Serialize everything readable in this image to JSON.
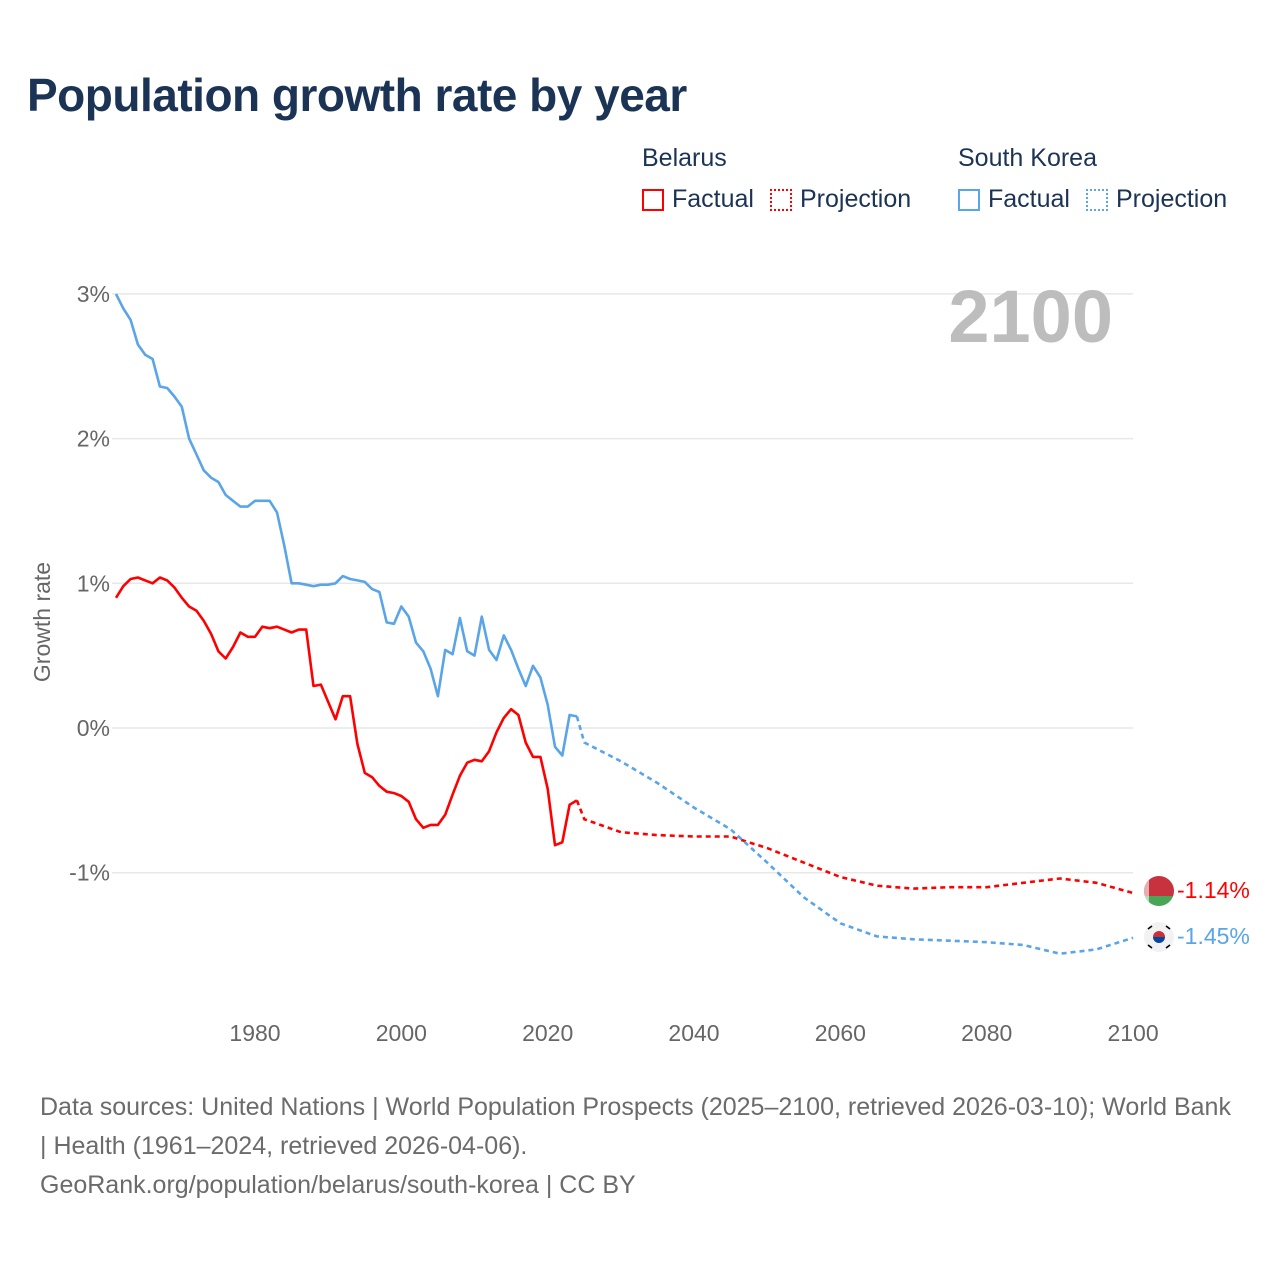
{
  "title": "Population growth rate by year",
  "legend": {
    "groups": [
      {
        "name": "Belarus",
        "color": "#ff0000",
        "factual": "Factual",
        "projection": "Projection"
      },
      {
        "name": "South Korea",
        "color": "#5aa5e8",
        "factual": "Factual",
        "projection": "Projection"
      }
    ]
  },
  "year_label": "2100",
  "footer": {
    "sources": "Data sources: United Nations | World Population Prospects (2025–2100, retrieved 2026-03-10); World Bank | Health (1961–2024, retrieved 2026-04-06).",
    "credit": "GeoRank.org/population/belarus/south-korea | CC BY"
  },
  "chart_data": {
    "type": "line",
    "title": "Population growth rate by year",
    "xlabel": "",
    "ylabel": "Growth rate",
    "xlim": [
      1961,
      2100
    ],
    "ylim": [
      -1.8,
      3.2
    ],
    "grid": true,
    "y_ticks": [
      {
        "v": 3,
        "label": "3%"
      },
      {
        "v": 2,
        "label": "2%"
      },
      {
        "v": 1,
        "label": "1%"
      },
      {
        "v": 0,
        "label": "0%"
      },
      {
        "v": -1,
        "label": "-1%"
      }
    ],
    "x_ticks": [
      {
        "v": 1980,
        "label": "1980"
      },
      {
        "v": 2000,
        "label": "2000"
      },
      {
        "v": 2020,
        "label": "2020"
      },
      {
        "v": 2040,
        "label": "2040"
      },
      {
        "v": 2060,
        "label": "2060"
      },
      {
        "v": 2080,
        "label": "2080"
      },
      {
        "v": 2100,
        "label": "2100"
      }
    ],
    "series": [
      {
        "name": "Belarus",
        "color": "#ff0000",
        "end_label": "-1.14%",
        "factual": {
          "start_year": 1961,
          "values": [
            0.9,
            0.98,
            1.03,
            1.04,
            1.02,
            1.0,
            1.04,
            1.02,
            0.97,
            0.9,
            0.84,
            0.81,
            0.74,
            0.65,
            0.53,
            0.48,
            0.56,
            0.66,
            0.63,
            0.63,
            0.7,
            0.69,
            0.7,
            0.68,
            0.66,
            0.68,
            0.68,
            0.29,
            0.3,
            0.18,
            0.06,
            0.22,
            0.22,
            -0.11,
            -0.31,
            -0.34,
            -0.4,
            -0.44,
            -0.45,
            -0.47,
            -0.51,
            -0.63,
            -0.69,
            -0.67,
            -0.67,
            -0.6,
            -0.46,
            -0.33,
            -0.24,
            -0.22,
            -0.23,
            -0.16,
            -0.03,
            0.07,
            0.13,
            0.09,
            -0.1,
            -0.2,
            -0.2,
            -0.42,
            -0.81,
            -0.79,
            -0.53,
            -0.5
          ]
        },
        "projection": {
          "years": [
            2024,
            2025,
            2030,
            2035,
            2040,
            2045,
            2050,
            2055,
            2060,
            2065,
            2070,
            2075,
            2080,
            2085,
            2090,
            2095,
            2100
          ],
          "values": [
            -0.5,
            -0.63,
            -0.72,
            -0.74,
            -0.75,
            -0.75,
            -0.83,
            -0.93,
            -1.03,
            -1.09,
            -1.11,
            -1.1,
            -1.1,
            -1.07,
            -1.04,
            -1.07,
            -1.14
          ]
        }
      },
      {
        "name": "South Korea",
        "color": "#5aa5e8",
        "end_label": "-1.45%",
        "factual": {
          "start_year": 1961,
          "values": [
            3.0,
            2.9,
            2.82,
            2.65,
            2.58,
            2.55,
            2.36,
            2.35,
            2.29,
            2.22,
            2.0,
            1.89,
            1.78,
            1.73,
            1.7,
            1.61,
            1.57,
            1.53,
            1.53,
            1.57,
            1.57,
            1.57,
            1.49,
            1.26,
            1.0,
            1.0,
            0.99,
            0.98,
            0.99,
            0.99,
            1.0,
            1.05,
            1.03,
            1.02,
            1.01,
            0.96,
            0.94,
            0.73,
            0.72,
            0.84,
            0.77,
            0.59,
            0.53,
            0.41,
            0.22,
            0.54,
            0.51,
            0.76,
            0.53,
            0.5,
            0.77,
            0.54,
            0.47,
            0.64,
            0.54,
            0.41,
            0.29,
            0.43,
            0.35,
            0.16,
            -0.13,
            -0.19,
            0.09,
            0.08
          ]
        },
        "projection": {
          "years": [
            2024,
            2025,
            2030,
            2035,
            2040,
            2045,
            2050,
            2055,
            2060,
            2065,
            2070,
            2075,
            2080,
            2085,
            2090,
            2095,
            2100
          ],
          "values": [
            0.08,
            -0.1,
            -0.23,
            -0.38,
            -0.55,
            -0.7,
            -0.93,
            -1.17,
            -1.35,
            -1.44,
            -1.46,
            -1.47,
            -1.48,
            -1.5,
            -1.56,
            -1.53,
            -1.45
          ]
        }
      }
    ]
  }
}
